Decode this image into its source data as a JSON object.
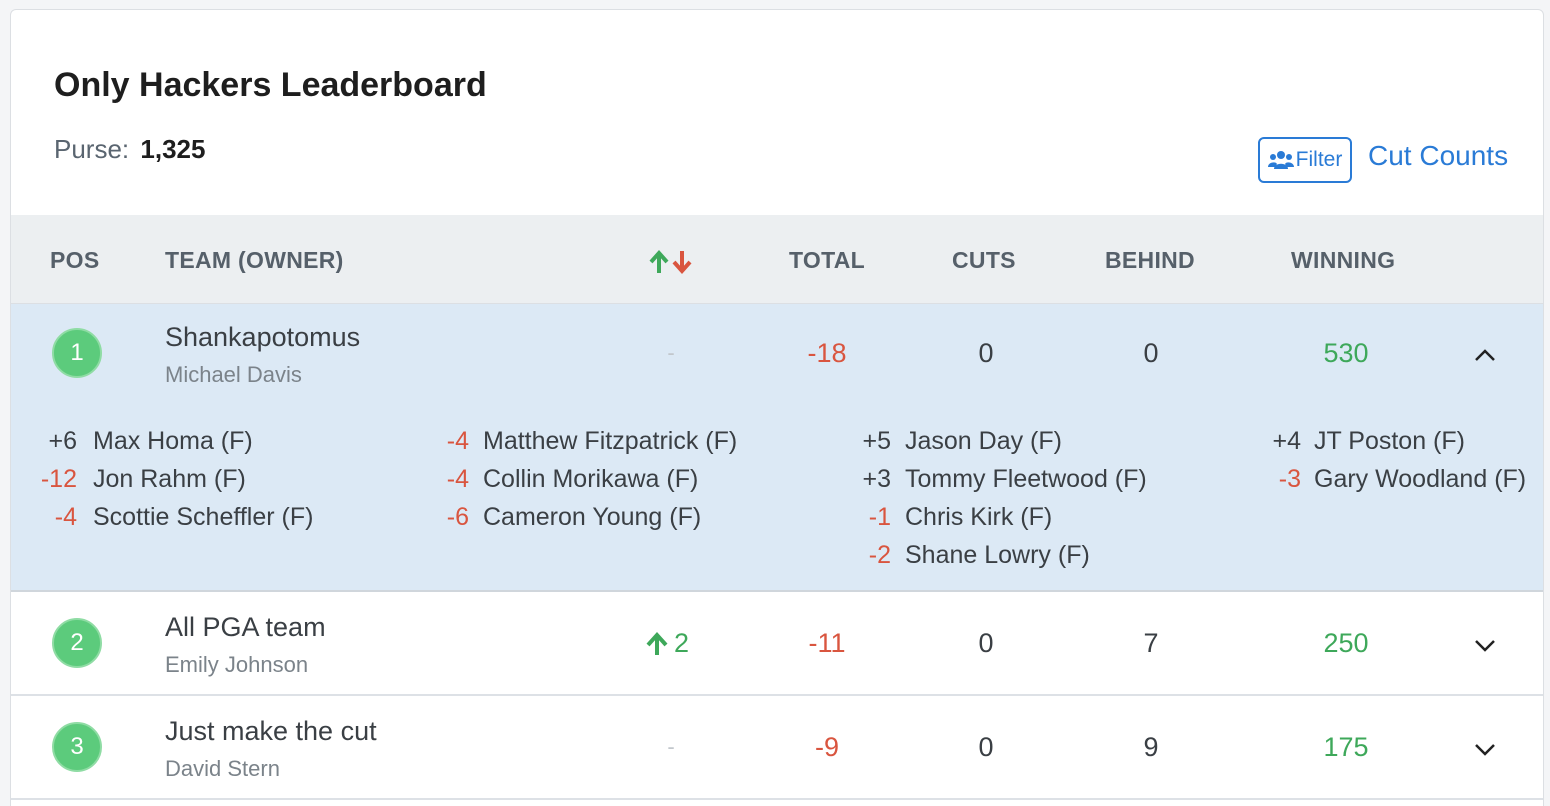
{
  "header": {
    "title": "Only Hackers Leaderboard",
    "purse_label": "Purse:",
    "purse_value": "1,325",
    "filter_label": "Filter",
    "cut_counts_label": "Cut Counts"
  },
  "columns": {
    "pos": "POS",
    "team": "TEAM (OWNER)",
    "total": "TOTAL",
    "cuts": "CUTS",
    "behind": "BEHIND",
    "winning": "WINNING"
  },
  "rows": [
    {
      "pos": "1",
      "team": "Shankapotomus",
      "owner": "Michael Davis",
      "movement": "-",
      "total": "-18",
      "cuts": "0",
      "behind": "0",
      "winning": "530",
      "expanded": true,
      "players": [
        {
          "score": "+6",
          "name": "Max Homa (F)"
        },
        {
          "score": "-12",
          "name": "Jon Rahm (F)"
        },
        {
          "score": "-4",
          "name": "Scottie Scheffler (F)"
        },
        {
          "score": "-4",
          "name": "Matthew Fitzpatrick (F)"
        },
        {
          "score": "-4",
          "name": "Collin Morikawa (F)"
        },
        {
          "score": "-6",
          "name": "Cameron Young (F)"
        },
        {
          "score": "+5",
          "name": "Jason Day (F)"
        },
        {
          "score": "+3",
          "name": "Tommy Fleetwood (F)"
        },
        {
          "score": "-1",
          "name": "Chris Kirk (F)"
        },
        {
          "score": "-2",
          "name": "Shane Lowry (F)"
        },
        {
          "score": "+4",
          "name": "JT Poston (F)"
        },
        {
          "score": "-3",
          "name": "Gary Woodland (F)"
        }
      ]
    },
    {
      "pos": "2",
      "team": "All PGA team",
      "owner": "Emily Johnson",
      "movement": "2",
      "total": "-11",
      "cuts": "0",
      "behind": "7",
      "winning": "250",
      "expanded": false
    },
    {
      "pos": "3",
      "team": "Just make the cut",
      "owner": "David Stern",
      "movement": "-",
      "total": "-9",
      "cuts": "0",
      "behind": "9",
      "winning": "175",
      "expanded": false
    }
  ],
  "colors": {
    "accent": "#2a7bd6",
    "badge": "#5ccb7c",
    "negative": "#d9553f",
    "positive_move": "#3ea85a",
    "expanded_bg": "#dce9f5"
  }
}
